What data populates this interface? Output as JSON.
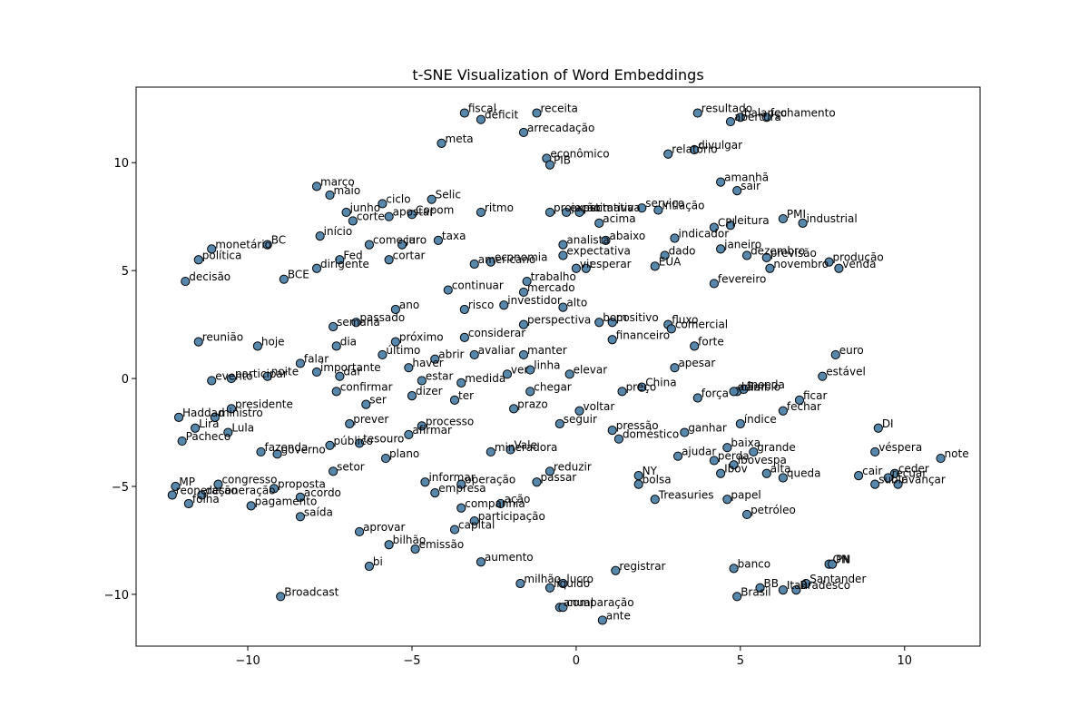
{
  "chart_data": {
    "type": "scatter",
    "title": "t-SNE Visualization of Word Embeddings",
    "xlabel": "",
    "ylabel": "",
    "xlim": [
      -13.4,
      12.3
    ],
    "ylim": [
      -12.4,
      13.5
    ],
    "x_ticks": [
      -10,
      -5,
      0,
      5,
      10
    ],
    "y_ticks": [
      -10,
      -5,
      0,
      5,
      10
    ],
    "x_tick_labels": [
      "−10",
      "−5",
      "0",
      "5",
      "10"
    ],
    "y_tick_labels": [
      "−10",
      "−5",
      "0",
      "5",
      "10"
    ],
    "grid": false,
    "legend": "none",
    "point_color": "#4f81a8",
    "point_edge_color": "#000000",
    "points": [
      {
        "label": "fiscal",
        "x": -3.4,
        "y": 12.3
      },
      {
        "label": "déficit",
        "x": -2.9,
        "y": 12.0
      },
      {
        "label": "receita",
        "x": -1.2,
        "y": 12.3
      },
      {
        "label": "arrecadação",
        "x": -1.6,
        "y": 11.4
      },
      {
        "label": "meta",
        "x": -4.1,
        "y": 10.9
      },
      {
        "label": "econômico",
        "x": -0.9,
        "y": 10.2
      },
      {
        "label": "PIB",
        "x": -0.8,
        "y": 9.9
      },
      {
        "label": "resultado",
        "x": 3.7,
        "y": 12.3
      },
      {
        "label": "balanço",
        "x": 5.0,
        "y": 12.1
      },
      {
        "label": "fechamento",
        "x": 5.8,
        "y": 12.1
      },
      {
        "label": "abertura",
        "x": 4.7,
        "y": 11.9
      },
      {
        "label": "relatório",
        "x": 2.8,
        "y": 10.4
      },
      {
        "label": "divulgar",
        "x": 3.6,
        "y": 10.6
      },
      {
        "label": "amanhã",
        "x": 4.4,
        "y": 9.1
      },
      {
        "label": "sair",
        "x": 4.9,
        "y": 8.7
      },
      {
        "label": "março",
        "x": -7.9,
        "y": 8.9
      },
      {
        "label": "maio",
        "x": -7.5,
        "y": 8.5
      },
      {
        "label": "ciclo",
        "x": -5.9,
        "y": 8.1
      },
      {
        "label": "Selic",
        "x": -4.4,
        "y": 8.3
      },
      {
        "label": "junho",
        "x": -7.0,
        "y": 7.7
      },
      {
        "label": "corte",
        "x": -6.8,
        "y": 7.3
      },
      {
        "label": "apostar",
        "x": -5.7,
        "y": 7.5
      },
      {
        "label": "Copom",
        "x": -5.0,
        "y": 7.6
      },
      {
        "label": "ritmo",
        "x": -2.9,
        "y": 7.7
      },
      {
        "label": "projeção",
        "x": -0.8,
        "y": 7.7
      },
      {
        "label": "estimativa",
        "x": 0.1,
        "y": 7.7
      },
      {
        "label": "expectativa",
        "x": -0.3,
        "y": 7.7
      },
      {
        "label": "acima",
        "x": 0.7,
        "y": 7.2
      },
      {
        "label": "serviço",
        "x": 2.0,
        "y": 7.9
      },
      {
        "label": "inflação",
        "x": 2.5,
        "y": 7.8
      },
      {
        "label": "CPI",
        "x": 4.2,
        "y": 7.0
      },
      {
        "label": "leitura",
        "x": 4.7,
        "y": 7.1
      },
      {
        "label": "PMI",
        "x": 6.3,
        "y": 7.4
      },
      {
        "label": "industrial",
        "x": 6.9,
        "y": 7.2
      },
      {
        "label": "início",
        "x": -7.8,
        "y": 6.6
      },
      {
        "label": "começar",
        "x": -6.3,
        "y": 6.2
      },
      {
        "label": "juro",
        "x": -5.3,
        "y": 6.2
      },
      {
        "label": "taxa",
        "x": -4.2,
        "y": 6.4
      },
      {
        "label": "abaixo",
        "x": 0.9,
        "y": 6.4
      },
      {
        "label": "analista",
        "x": -0.4,
        "y": 6.2
      },
      {
        "label": "indicador",
        "x": 3.0,
        "y": 6.5
      },
      {
        "label": "janeiro",
        "x": 4.4,
        "y": 6.0
      },
      {
        "label": "dezembro",
        "x": 5.2,
        "y": 5.7
      },
      {
        "label": "previsão",
        "x": 5.8,
        "y": 5.6
      },
      {
        "label": "BC",
        "x": -9.4,
        "y": 6.2
      },
      {
        "label": "monetário",
        "x": -11.1,
        "y": 6.0
      },
      {
        "label": "política",
        "x": -11.5,
        "y": 5.5
      },
      {
        "label": "Fed",
        "x": -7.2,
        "y": 5.5
      },
      {
        "label": "cortar",
        "x": -5.7,
        "y": 5.5
      },
      {
        "label": "americano",
        "x": -3.1,
        "y": 5.3
      },
      {
        "label": "economia",
        "x": -2.6,
        "y": 5.4
      },
      {
        "label": "expectativa",
        "x": -0.4,
        "y": 5.7
      },
      {
        "label": "vir",
        "x": -0.0,
        "y": 5.1
      },
      {
        "label": "esperar",
        "x": 0.3,
        "y": 5.1
      },
      {
        "label": "dado",
        "x": 2.7,
        "y": 5.7
      },
      {
        "label": "EUA",
        "x": 2.4,
        "y": 5.2
      },
      {
        "label": "novembro",
        "x": 5.9,
        "y": 5.1
      },
      {
        "label": "produção",
        "x": 7.7,
        "y": 5.4
      },
      {
        "label": "venda",
        "x": 8.0,
        "y": 5.1
      },
      {
        "label": "decisão",
        "x": -11.9,
        "y": 4.5
      },
      {
        "label": "BCE",
        "x": -8.9,
        "y": 4.6
      },
      {
        "label": "dirigente",
        "x": -7.9,
        "y": 5.1
      },
      {
        "label": "fevereiro",
        "x": 4.2,
        "y": 4.4
      },
      {
        "label": "continuar",
        "x": -3.9,
        "y": 4.1
      },
      {
        "label": "trabalho",
        "x": -1.5,
        "y": 4.5
      },
      {
        "label": "mercado",
        "x": -1.6,
        "y": 4.0
      },
      {
        "label": "investidor",
        "x": -2.2,
        "y": 3.4
      },
      {
        "label": "alto",
        "x": -0.4,
        "y": 3.3
      },
      {
        "label": "ano",
        "x": -5.5,
        "y": 3.2
      },
      {
        "label": "risco",
        "x": -3.4,
        "y": 3.2
      },
      {
        "label": "passado",
        "x": -6.7,
        "y": 2.6
      },
      {
        "label": "semana",
        "x": -7.4,
        "y": 2.4
      },
      {
        "label": "perspectiva",
        "x": -1.6,
        "y": 2.5
      },
      {
        "label": "bom",
        "x": 0.7,
        "y": 2.6
      },
      {
        "label": "positivo",
        "x": 1.1,
        "y": 2.6
      },
      {
        "label": "fluxo",
        "x": 2.8,
        "y": 2.5
      },
      {
        "label": "comercial",
        "x": 2.9,
        "y": 2.3
      },
      {
        "label": "reunião",
        "x": -11.5,
        "y": 1.7
      },
      {
        "label": "hoje",
        "x": -9.7,
        "y": 1.5
      },
      {
        "label": "dia",
        "x": -7.3,
        "y": 1.5
      },
      {
        "label": "próximo",
        "x": -5.5,
        "y": 1.7
      },
      {
        "label": "considerar",
        "x": -3.4,
        "y": 1.9
      },
      {
        "label": "financeiro",
        "x": 1.1,
        "y": 1.8
      },
      {
        "label": "forte",
        "x": 3.6,
        "y": 1.5
      },
      {
        "label": "último",
        "x": -5.9,
        "y": 1.1
      },
      {
        "label": "abrir",
        "x": -4.3,
        "y": 0.9
      },
      {
        "label": "avaliar",
        "x": -3.1,
        "y": 1.1
      },
      {
        "label": "manter",
        "x": -1.6,
        "y": 1.1
      },
      {
        "label": "euro",
        "x": 7.9,
        "y": 1.1
      },
      {
        "label": "falar",
        "x": -8.4,
        "y": 0.7
      },
      {
        "label": "importante",
        "x": -7.9,
        "y": 0.3
      },
      {
        "label": "haver",
        "x": -5.1,
        "y": 0.5
      },
      {
        "label": "linha",
        "x": -1.4,
        "y": 0.4
      },
      {
        "label": "apesar",
        "x": 3.0,
        "y": 0.5
      },
      {
        "label": "estável",
        "x": 7.5,
        "y": 0.1
      },
      {
        "label": "noite",
        "x": -9.4,
        "y": 0.1
      },
      {
        "label": "participar",
        "x": -10.5,
        "y": 0.0
      },
      {
        "label": "evento",
        "x": -11.1,
        "y": -0.1
      },
      {
        "label": "dar",
        "x": -7.2,
        "y": 0.1
      },
      {
        "label": "estar",
        "x": -4.7,
        "y": -0.1
      },
      {
        "label": "medida",
        "x": -3.5,
        "y": -0.2
      },
      {
        "label": "ver",
        "x": -2.1,
        "y": 0.2
      },
      {
        "label": "elevar",
        "x": -0.2,
        "y": 0.2
      },
      {
        "label": "preço",
        "x": 1.4,
        "y": -0.6
      },
      {
        "label": "China",
        "x": 2.0,
        "y": -0.4
      },
      {
        "label": "câmbio",
        "x": 4.9,
        "y": -0.6
      },
      {
        "label": "moeda",
        "x": 5.1,
        "y": -0.5
      },
      {
        "label": "dólar",
        "x": 4.8,
        "y": -0.6
      },
      {
        "label": "confirmar",
        "x": -7.3,
        "y": -0.6
      },
      {
        "label": "dizer",
        "x": -5.0,
        "y": -0.8
      },
      {
        "label": "ter",
        "x": -3.7,
        "y": -1.0
      },
      {
        "label": "chegar",
        "x": -1.4,
        "y": -0.6
      },
      {
        "label": "força",
        "x": 3.7,
        "y": -0.9
      },
      {
        "label": "ficar",
        "x": 6.8,
        "y": -1.0
      },
      {
        "label": "presidente",
        "x": -10.5,
        "y": -1.4
      },
      {
        "label": "ser",
        "x": -6.4,
        "y": -1.2
      },
      {
        "label": "prazo",
        "x": -1.9,
        "y": -1.4
      },
      {
        "label": "voltar",
        "x": 0.1,
        "y": -1.5
      },
      {
        "label": "fechar",
        "x": 6.3,
        "y": -1.5
      },
      {
        "label": "Haddad",
        "x": -12.1,
        "y": -1.8
      },
      {
        "label": "ministro",
        "x": -11.0,
        "y": -1.8
      },
      {
        "label": "prever",
        "x": -6.9,
        "y": -2.1
      },
      {
        "label": "processo",
        "x": -4.7,
        "y": -2.2
      },
      {
        "label": "seguir",
        "x": -0.5,
        "y": -2.1
      },
      {
        "label": "índice",
        "x": 5.0,
        "y": -2.1
      },
      {
        "label": "Lira",
        "x": -11.6,
        "y": -2.3
      },
      {
        "label": "Lula",
        "x": -10.6,
        "y": -2.5
      },
      {
        "label": "afirmar",
        "x": -5.1,
        "y": -2.6
      },
      {
        "label": "pressão",
        "x": 1.1,
        "y": -2.4
      },
      {
        "label": "doméstico",
        "x": 1.3,
        "y": -2.8
      },
      {
        "label": "ganhar",
        "x": 3.3,
        "y": -2.5
      },
      {
        "label": "DI",
        "x": 9.2,
        "y": -2.3
      },
      {
        "label": "Pacheco",
        "x": -12.0,
        "y": -2.9
      },
      {
        "label": "público",
        "x": -7.5,
        "y": -3.1
      },
      {
        "label": "tesouro",
        "x": -6.6,
        "y": -3.0
      },
      {
        "label": "Vale",
        "x": -2.0,
        "y": -3.3
      },
      {
        "label": "mineradora",
        "x": -2.6,
        "y": -3.4
      },
      {
        "label": "baixa",
        "x": 4.6,
        "y": -3.2
      },
      {
        "label": "grande",
        "x": 5.4,
        "y": -3.4
      },
      {
        "label": "véspera",
        "x": 9.1,
        "y": -3.4
      },
      {
        "label": "fazenda",
        "x": -9.6,
        "y": -3.4
      },
      {
        "label": "governo",
        "x": -9.1,
        "y": -3.5
      },
      {
        "label": "plano",
        "x": -5.8,
        "y": -3.7
      },
      {
        "label": "ajudar",
        "x": 3.1,
        "y": -3.6
      },
      {
        "label": "perda",
        "x": 4.2,
        "y": -3.8
      },
      {
        "label": "Ibovespa",
        "x": 4.8,
        "y": -4.0
      },
      {
        "label": "note",
        "x": 11.1,
        "y": -3.7
      },
      {
        "label": "setor",
        "x": -7.4,
        "y": -4.3
      },
      {
        "label": "reduzir",
        "x": -0.8,
        "y": -4.3
      },
      {
        "label": "Ibov",
        "x": 4.4,
        "y": -4.4
      },
      {
        "label": "alta",
        "x": 5.8,
        "y": -4.4
      },
      {
        "label": "queda",
        "x": 6.3,
        "y": -4.6
      },
      {
        "label": "NY",
        "x": 1.9,
        "y": -4.5
      },
      {
        "label": "cair",
        "x": 8.6,
        "y": -4.5
      },
      {
        "label": "ceder",
        "x": 9.7,
        "y": -4.4
      },
      {
        "label": "recuar",
        "x": 9.5,
        "y": -4.6
      },
      {
        "label": "passar",
        "x": -1.2,
        "y": -4.8
      },
      {
        "label": "informar",
        "x": -4.6,
        "y": -4.8
      },
      {
        "label": "operação",
        "x": -3.5,
        "y": -4.9
      },
      {
        "label": "bolsa",
        "x": 1.9,
        "y": -4.9
      },
      {
        "label": "subir",
        "x": 9.1,
        "y": -4.9
      },
      {
        "label": "avançar",
        "x": 9.8,
        "y": -4.9
      },
      {
        "label": "MP",
        "x": -12.2,
        "y": -5.0
      },
      {
        "label": "congresso",
        "x": -10.9,
        "y": -4.9
      },
      {
        "label": "proposta",
        "x": -9.2,
        "y": -5.1
      },
      {
        "label": "empresa",
        "x": -4.3,
        "y": -5.3
      },
      {
        "label": "reoneração",
        "x": -12.3,
        "y": -5.4
      },
      {
        "label": "desoneração",
        "x": -11.4,
        "y": -5.4
      },
      {
        "label": "acordo",
        "x": -8.4,
        "y": -5.5
      },
      {
        "label": "ação",
        "x": -2.3,
        "y": -5.8
      },
      {
        "label": "Treasuries",
        "x": 2.4,
        "y": -5.6
      },
      {
        "label": "papel",
        "x": 4.6,
        "y": -5.6
      },
      {
        "label": "folha",
        "x": -11.8,
        "y": -5.8
      },
      {
        "label": "pagamento",
        "x": -9.9,
        "y": -5.9
      },
      {
        "label": "companhia",
        "x": -3.5,
        "y": -6.0
      },
      {
        "label": "saída",
        "x": -8.4,
        "y": -6.4
      },
      {
        "label": "participação",
        "x": -3.1,
        "y": -6.6
      },
      {
        "label": "petróleo",
        "x": 5.2,
        "y": -6.3
      },
      {
        "label": "capital",
        "x": -3.7,
        "y": -7.0
      },
      {
        "label": "aprovar",
        "x": -6.6,
        "y": -7.1
      },
      {
        "label": "bilhão",
        "x": -5.7,
        "y": -7.7
      },
      {
        "label": "emissão",
        "x": -4.9,
        "y": -7.9
      },
      {
        "label": "bi",
        "x": -6.3,
        "y": -8.7
      },
      {
        "label": "aumento",
        "x": -2.9,
        "y": -8.5
      },
      {
        "label": "registrar",
        "x": 1.2,
        "y": -8.9
      },
      {
        "label": "banco",
        "x": 4.8,
        "y": -8.8
      },
      {
        "label": "ON",
        "x": 7.7,
        "y": -8.6
      },
      {
        "label": "PN",
        "x": 7.8,
        "y": -8.6
      },
      {
        "label": "milhão",
        "x": -1.7,
        "y": -9.5
      },
      {
        "label": "lucro",
        "x": -0.4,
        "y": -9.5
      },
      {
        "label": "líquido",
        "x": -0.8,
        "y": -9.7
      },
      {
        "label": "BB",
        "x": 5.6,
        "y": -9.7
      },
      {
        "label": "Itaú",
        "x": 6.3,
        "y": -9.8
      },
      {
        "label": "Bradesco",
        "x": 6.7,
        "y": -9.8
      },
      {
        "label": "Santander",
        "x": 7.0,
        "y": -9.5
      },
      {
        "label": "Broadcast",
        "x": -9.0,
        "y": -10.1
      },
      {
        "label": "Brasil",
        "x": 4.9,
        "y": -10.1
      },
      {
        "label": "anual",
        "x": -0.5,
        "y": -10.6
      },
      {
        "label": "comparação",
        "x": -0.4,
        "y": -10.6
      },
      {
        "label": "ante",
        "x": 0.8,
        "y": -11.2
      }
    ]
  }
}
